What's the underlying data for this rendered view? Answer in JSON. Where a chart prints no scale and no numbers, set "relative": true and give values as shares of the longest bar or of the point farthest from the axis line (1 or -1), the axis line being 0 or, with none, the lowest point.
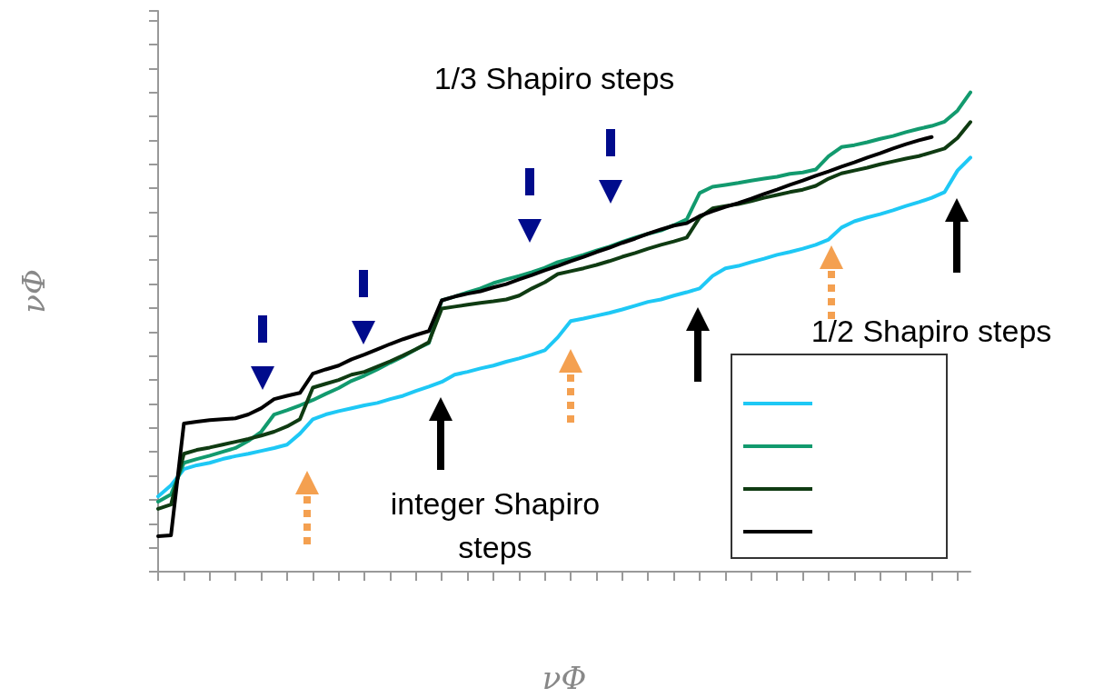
{
  "chart_data": {
    "type": "line",
    "relative": true,
    "xlabel": "νΦ",
    "ylabel": "νΦ",
    "categories": [
      null,
      null,
      null,
      null,
      null,
      null,
      null,
      null,
      null,
      null,
      null,
      null,
      null,
      null,
      null,
      null,
      null,
      null,
      null,
      null,
      null,
      null,
      null,
      null,
      null,
      null,
      null,
      null,
      null,
      null,
      null,
      null,
      null,
      null,
      null,
      null,
      null,
      null,
      null,
      null,
      null,
      null,
      null,
      null,
      null,
      null,
      null,
      null,
      null,
      null,
      null,
      null,
      null,
      null,
      null,
      null,
      null,
      null,
      null,
      null,
      null,
      null,
      null,
      null
    ],
    "series": [
      {
        "color": "#1ec8f5",
        "values": [
          0.157,
          0.18,
          0.214,
          0.222,
          0.227,
          0.235,
          0.241,
          0.246,
          0.252,
          0.258,
          0.265,
          0.288,
          0.318,
          0.328,
          0.335,
          0.341,
          0.347,
          0.352,
          0.36,
          0.367,
          0.377,
          0.386,
          0.396,
          0.411,
          0.417,
          0.424,
          0.43,
          0.438,
          0.445,
          0.453,
          0.462,
          0.489,
          0.523,
          0.528,
          0.534,
          0.54,
          0.547,
          0.555,
          0.563,
          0.568,
          0.576,
          0.583,
          0.591,
          0.617,
          0.633,
          0.638,
          0.646,
          0.653,
          0.661,
          0.667,
          0.674,
          0.682,
          0.693,
          0.718,
          0.731,
          0.739,
          0.746,
          0.754,
          0.763,
          0.771,
          0.78,
          0.792,
          0.837,
          0.864
        ]
      },
      {
        "color": "#129a6e",
        "values": [
          0.146,
          0.161,
          0.227,
          0.235,
          0.242,
          0.25,
          0.258,
          0.273,
          0.292,
          0.328,
          0.337,
          0.347,
          0.358,
          0.371,
          0.383,
          0.398,
          0.409,
          0.422,
          0.436,
          0.449,
          0.464,
          0.477,
          0.566,
          0.574,
          0.583,
          0.591,
          0.602,
          0.61,
          0.617,
          0.625,
          0.634,
          0.646,
          0.653,
          0.661,
          0.67,
          0.678,
          0.688,
          0.697,
          0.705,
          0.712,
          0.723,
          0.735,
          0.79,
          0.803,
          0.807,
          0.811,
          0.816,
          0.82,
          0.824,
          0.83,
          0.833,
          0.839,
          0.867,
          0.886,
          0.89,
          0.896,
          0.903,
          0.909,
          0.917,
          0.924,
          0.93,
          0.939,
          0.962,
          1.0
        ]
      },
      {
        "color": "#0f3b12",
        "values": [
          0.131,
          0.14,
          0.246,
          0.254,
          0.259,
          0.265,
          0.271,
          0.277,
          0.284,
          0.292,
          0.303,
          0.318,
          0.384,
          0.392,
          0.4,
          0.411,
          0.417,
          0.428,
          0.439,
          0.451,
          0.464,
          0.479,
          0.549,
          0.553,
          0.557,
          0.561,
          0.564,
          0.568,
          0.576,
          0.591,
          0.604,
          0.621,
          0.627,
          0.633,
          0.64,
          0.648,
          0.657,
          0.665,
          0.674,
          0.682,
          0.689,
          0.697,
          0.739,
          0.758,
          0.763,
          0.767,
          0.773,
          0.78,
          0.786,
          0.792,
          0.797,
          0.805,
          0.82,
          0.831,
          0.837,
          0.843,
          0.85,
          0.856,
          0.862,
          0.867,
          0.875,
          0.883,
          0.905,
          0.938
        ]
      },
      {
        "color": "#000000",
        "values": [
          0.074,
          0.076,
          0.309,
          0.313,
          0.316,
          0.318,
          0.32,
          0.328,
          0.341,
          0.36,
          0.367,
          0.373,
          0.413,
          0.422,
          0.43,
          0.443,
          0.453,
          0.464,
          0.475,
          0.485,
          0.494,
          0.502,
          0.566,
          0.574,
          0.58,
          0.585,
          0.593,
          0.6,
          0.61,
          0.619,
          0.629,
          0.638,
          0.648,
          0.657,
          0.667,
          0.676,
          0.686,
          0.695,
          0.705,
          0.714,
          0.722,
          0.727,
          0.742,
          0.752,
          0.761,
          0.769,
          0.778,
          0.788,
          0.797,
          0.807,
          0.816,
          0.826,
          0.835,
          0.845,
          0.854,
          0.864,
          0.873,
          0.883,
          0.892,
          0.9,
          0.907,
          null,
          null,
          null
        ]
      }
    ],
    "annotations": [
      "1/3 Shapiro steps",
      "integer Shapiro steps",
      "1/2 Shapiro steps"
    ],
    "grid": false,
    "marker": "none",
    "line_style": "solid"
  }
}
